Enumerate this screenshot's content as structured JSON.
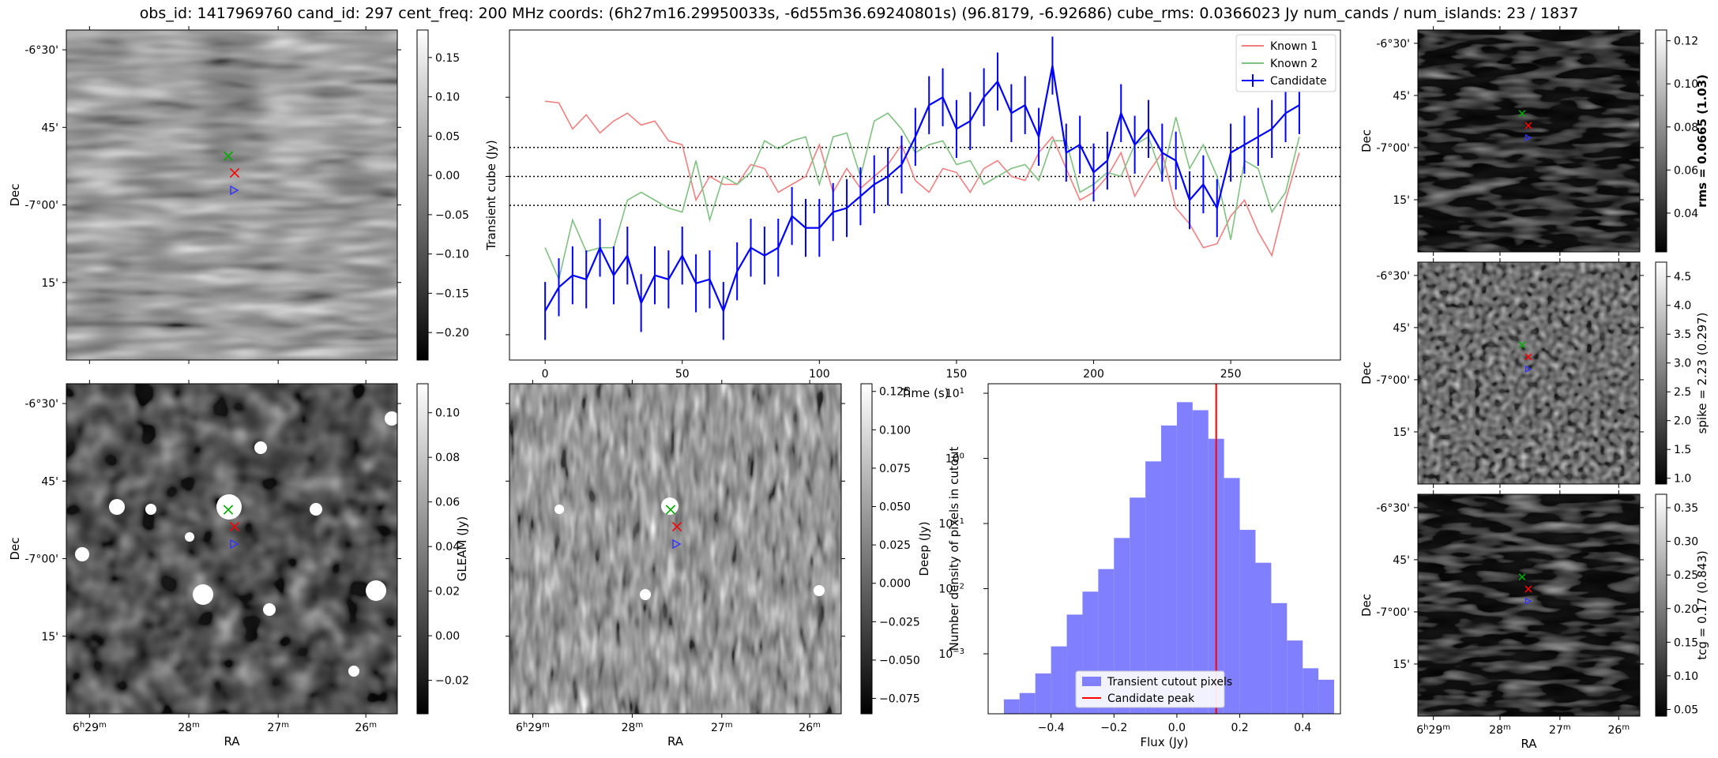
{
  "title": "obs_id: 1417969760 cand_id: 297 cent_freq: 200 MHz coords: (6h27m16.29950033s, -6d55m36.69240801s) (96.8179, -6.92686) cube_rms: 0.0366023 Jy num_cands / num_islands: 23 / 1837",
  "labels": {
    "ra": "RA",
    "dec": "Dec",
    "ra_ticks": [
      "6h29m",
      "28m",
      "27m",
      "26m"
    ],
    "dec_ticks": [
      "-6°30'",
      "45'",
      "-7°00'",
      "15'"
    ]
  },
  "images": {
    "transient": {
      "cbar_label": "",
      "cbar_ticks": [
        "0.15",
        "0.10",
        "0.05",
        "0.00",
        "−0.05",
        "−0.10",
        "−0.15",
        "−0.20"
      ],
      "cbar_range": [
        -0.235,
        0.185
      ]
    },
    "gleam": {
      "cbar_label": "GLEAM (Jy)",
      "cbar_ticks": [
        "0.10",
        "0.08",
        "0.06",
        "0.04",
        "0.02",
        "0.00",
        "−0.02"
      ],
      "cbar_range": [
        -0.035,
        0.113
      ]
    },
    "deep": {
      "cbar_label": "Deep (Jy)",
      "cbar_ticks": [
        "0.125",
        "0.100",
        "0.075",
        "0.050",
        "0.025",
        "0.000",
        "−0.025",
        "−0.050",
        "−0.075"
      ],
      "cbar_range": [
        -0.085,
        0.13
      ]
    },
    "rms": {
      "cbar_label": "rms = 0.0665 (1.03)",
      "cbar_ticks": [
        "0.12",
        "0.10",
        "0.08",
        "0.06",
        "0.04"
      ],
      "cbar_range": [
        0.022,
        0.125
      ]
    },
    "spike": {
      "cbar_label": "spike = 2.23 (0.297)",
      "cbar_ticks": [
        "4.5",
        "4.0",
        "3.5",
        "3.0",
        "2.5",
        "2.0",
        "1.5",
        "1.0"
      ],
      "cbar_range": [
        0.9,
        4.75
      ]
    },
    "tcg": {
      "cbar_label": "tcg = 0.17 (0.843)",
      "cbar_ticks": [
        "0.35",
        "0.30",
        "0.25",
        "0.20",
        "0.15",
        "0.10",
        "0.05"
      ],
      "cbar_range": [
        0.04,
        0.37
      ]
    }
  },
  "colors": {
    "known1": "#f08080",
    "known2": "#80c080",
    "candidate": "#0000ff",
    "peak": "#ff0000",
    "hist": "#8080ff"
  },
  "chart_data": [
    {
      "type": "line",
      "xlabel": "Time (s)",
      "ylabel": "Transient cube (Jy)",
      "xlim": [
        -13,
        290
      ],
      "ylim": [
        -0.232,
        0.185
      ],
      "xticks": [
        0,
        50,
        100,
        150,
        200,
        250
      ],
      "hlines": [
        0.0366,
        0.0,
        -0.0366
      ],
      "legend": "top-right",
      "series": [
        {
          "name": "Known 1",
          "x": [
            0,
            5,
            10,
            15,
            20,
            25,
            30,
            35,
            40,
            45,
            50,
            55,
            60,
            65,
            70,
            75,
            80,
            85,
            90,
            95,
            100,
            105,
            110,
            115,
            120,
            125,
            130,
            135,
            140,
            145,
            150,
            155,
            160,
            165,
            170,
            175,
            180,
            185,
            190,
            195,
            200,
            205,
            210,
            215,
            220,
            225,
            230,
            235,
            240,
            245,
            250,
            255,
            260,
            265,
            270,
            275
          ],
          "y": [
            0.095,
            0.093,
            0.06,
            0.078,
            0.055,
            0.07,
            0.08,
            0.065,
            0.07,
            0.045,
            0.04,
            -0.03,
            0.0,
            -0.01,
            -0.01,
            0.015,
            0.01,
            -0.02,
            -0.01,
            0.0,
            0.04,
            -0.02,
            0.01,
            -0.015,
            0.0,
            0.015,
            0.04,
            -0.005,
            -0.02,
            0.01,
            0.005,
            -0.02,
            0.01,
            0.02,
            0.0,
            -0.005,
            0.03,
            0.05,
            0.01,
            -0.03,
            -0.02,
            0.0,
            0.03,
            -0.025,
            0.005,
            0.03,
            -0.04,
            -0.06,
            -0.09,
            -0.085,
            -0.05,
            -0.03,
            -0.07,
            -0.1,
            -0.03,
            0.03
          ]
        },
        {
          "name": "Known 2",
          "x": [
            0,
            5,
            10,
            15,
            20,
            25,
            30,
            35,
            40,
            45,
            50,
            55,
            60,
            65,
            70,
            75,
            80,
            85,
            90,
            95,
            100,
            105,
            110,
            115,
            120,
            125,
            130,
            135,
            140,
            145,
            150,
            155,
            160,
            165,
            170,
            175,
            180,
            185,
            190,
            195,
            200,
            205,
            210,
            215,
            220,
            225,
            230,
            235,
            240,
            245,
            250,
            255,
            260,
            265,
            270,
            275
          ],
          "y": [
            -0.09,
            -0.13,
            -0.055,
            -0.095,
            -0.09,
            -0.09,
            -0.03,
            -0.02,
            -0.03,
            -0.04,
            -0.045,
            0.02,
            -0.055,
            0.0,
            -0.01,
            0.005,
            0.045,
            0.035,
            0.045,
            0.05,
            -0.01,
            0.05,
            0.055,
            0.0,
            0.07,
            0.08,
            0.06,
            0.03,
            0.04,
            0.045,
            0.015,
            0.02,
            -0.01,
            0.0,
            0.01,
            0.015,
            -0.005,
            0.045,
            0.045,
            -0.02,
            -0.01,
            0.005,
            0.0,
            0.04,
            0.05,
            0.0,
            0.075,
            0.01,
            0.04,
            0.0,
            -0.08,
            0.02,
            0.01,
            -0.045,
            -0.02,
            0.05
          ]
        },
        {
          "name": "Candidate",
          "x": [
            0,
            5,
            10,
            15,
            20,
            25,
            30,
            35,
            40,
            45,
            50,
            55,
            60,
            65,
            70,
            75,
            80,
            85,
            90,
            95,
            100,
            105,
            110,
            115,
            120,
            125,
            130,
            135,
            140,
            145,
            150,
            155,
            160,
            165,
            170,
            175,
            180,
            185,
            190,
            195,
            200,
            205,
            210,
            215,
            220,
            225,
            230,
            235,
            240,
            245,
            250,
            255,
            260,
            265,
            270,
            275
          ],
          "y": [
            -0.17,
            -0.14,
            -0.125,
            -0.13,
            -0.09,
            -0.125,
            -0.1,
            -0.16,
            -0.125,
            -0.13,
            -0.1,
            -0.135,
            -0.13,
            -0.17,
            -0.12,
            -0.09,
            -0.1,
            -0.09,
            -0.05,
            -0.065,
            -0.065,
            -0.045,
            -0.04,
            -0.025,
            -0.01,
            0.0,
            0.015,
            0.05,
            0.09,
            0.1,
            0.06,
            0.07,
            0.1,
            0.12,
            0.08,
            0.09,
            0.05,
            0.14,
            0.03,
            0.04,
            0.005,
            0.02,
            0.08,
            0.04,
            0.06,
            0.03,
            0.02,
            -0.03,
            -0.01,
            -0.04,
            0.03,
            0.04,
            0.05,
            0.06,
            0.08,
            0.09
          ],
          "error": 0.0366
        }
      ]
    },
    {
      "type": "bar",
      "xlabel": "Flux (Jy)",
      "ylabel": "Number density of pixels in cutout",
      "yscale": "log",
      "xlim": [
        -0.6,
        0.52
      ],
      "ylim": [
        0.00012,
        14
      ],
      "xticks": [
        -0.4,
        -0.2,
        0.0,
        0.2,
        0.4
      ],
      "yticks": [
        "10^-3",
        "10^-2",
        "10^-1",
        "10^0",
        "10^1"
      ],
      "legend": "bottom-center",
      "series": [
        {
          "name": "Transient cutout pixels",
          "bin_edges": [
            -0.55,
            -0.5,
            -0.45,
            -0.4,
            -0.35,
            -0.3,
            -0.25,
            -0.2,
            -0.15,
            -0.1,
            -0.05,
            0.0,
            0.05,
            0.1,
            0.15,
            0.2,
            0.25,
            0.3,
            0.35,
            0.4,
            0.45,
            0.5
          ],
          "values": [
            0.0002,
            0.00025,
            0.0005,
            0.0013,
            0.004,
            0.009,
            0.02,
            0.06,
            0.25,
            0.9,
            3.2,
            7.3,
            5.5,
            2.0,
            0.5,
            0.08,
            0.025,
            0.006,
            0.0016,
            0.0006,
            0.0004
          ]
        },
        {
          "name": "Candidate peak",
          "x": 0.125
        }
      ]
    }
  ]
}
